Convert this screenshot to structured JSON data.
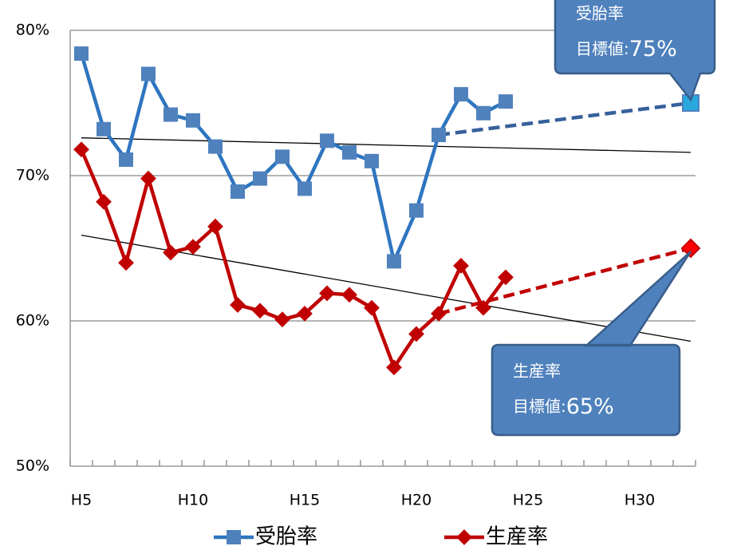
{
  "chart_data": {
    "type": "line",
    "categories": [
      "H5",
      null,
      null,
      null,
      null,
      "H10",
      null,
      null,
      null,
      null,
      "H15",
      null,
      null,
      null,
      null,
      "H20",
      null,
      null,
      null,
      null,
      "H25",
      null,
      null,
      null,
      null,
      "H30",
      null,
      null
    ],
    "ylim": [
      50,
      80
    ],
    "yticks": [
      {
        "value": 50,
        "label": "50%"
      },
      {
        "value": 60,
        "label": "60%"
      },
      {
        "value": 70,
        "label": "70%"
      },
      {
        "value": 80,
        "label": "80%"
      }
    ],
    "grid": true,
    "legend": "bottom",
    "series": [
      {
        "name": "受胎率",
        "color": "#2e75c0",
        "marker": "square",
        "marker_color": "#4f81bd",
        "values": [
          78.4,
          73.2,
          71.1,
          77.0,
          74.2,
          73.8,
          72.0,
          68.9,
          69.8,
          71.3,
          69.1,
          72.4,
          71.6,
          71.0,
          64.1,
          67.6,
          72.8,
          75.6,
          74.3,
          75.1,
          null,
          null,
          null,
          null,
          null,
          null,
          null,
          75
        ],
        "trend": [
          72.6,
          71.6
        ],
        "callout": {
          "title": "受胎率",
          "prefix": "目標値:",
          "value": 75,
          "value_label": "75%",
          "marker_color": "#29a8e0",
          "dash_color": "#36609b"
        }
      },
      {
        "name": "生産率",
        "color": "#c00000",
        "marker": "diamond",
        "marker_color": "#c00000",
        "values": [
          71.8,
          68.2,
          64.0,
          69.8,
          64.7,
          65.1,
          66.5,
          61.1,
          60.7,
          60.1,
          60.5,
          61.9,
          61.8,
          60.9,
          56.8,
          59.1,
          60.5,
          63.8,
          60.9,
          63.0,
          null,
          null,
          null,
          null,
          null,
          null,
          null,
          65
        ],
        "trend": [
          65.9,
          58.6
        ],
        "callout": {
          "title": "生産率",
          "prefix": "目標値:",
          "value": 65,
          "value_label": "65%",
          "marker_color": "#ff0000",
          "dash_color": "#c00000"
        }
      }
    ]
  }
}
